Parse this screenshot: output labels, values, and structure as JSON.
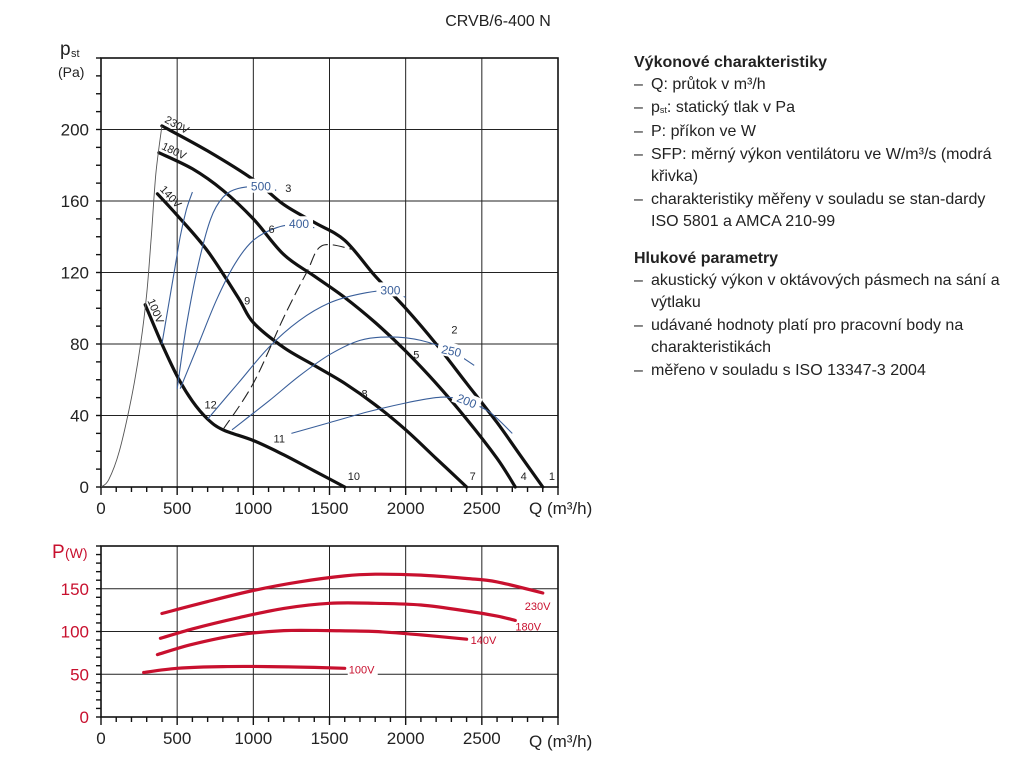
{
  "title": "CRVB/6-400 N",
  "notes": {
    "sections": [
      {
        "heading": "Výkonové charakteristiky",
        "items": [
          "Q: průtok v m³/h",
          "pst: statický tlak v Pa",
          "P: příkon ve W",
          "SFP: měrný výkon ventilátoru ve W/m³/s (modrá křivka)",
          "charakteristiky měřeny v souladu se stan-dardy ISO 5801 a AMCA 210-99"
        ]
      },
      {
        "heading": "Hlukové parametry",
        "items": [
          "akustický výkon v oktávových pásmech na sání a výtlaku",
          "udávané hodnoty platí pro pracovní body na charakteristikách",
          "měřeno v souladu s ISO 13347-3 2004"
        ]
      }
    ]
  },
  "colors": {
    "axis": "#111111",
    "fan_curve": "#111111",
    "sfp_curve": "#3a5f9a",
    "power": "#c8102e",
    "grid": "#222222"
  },
  "chart_data": [
    {
      "type": "line",
      "name": "pressure",
      "title": "CRVB/6-400 N",
      "xlabel": "Q (m³/h)",
      "ylabel_main": "p",
      "ylabel_sub": "st",
      "ylabel_unit": "(Pa)",
      "xlim": [
        0,
        3000
      ],
      "ylim": [
        0,
        240
      ],
      "xticks": [
        0,
        500,
        1000,
        1500,
        2000,
        2500
      ],
      "yticks": [
        0,
        40,
        80,
        120,
        160,
        200
      ],
      "grid": true,
      "series": [
        {
          "name": "230V",
          "kind": "fan",
          "label": "230V",
          "points": [
            [
              400,
              202
            ],
            [
              700,
              188
            ],
            [
              1000,
              172
            ],
            [
              1200,
              158
            ],
            [
              1400,
              148
            ],
            [
              1600,
              138
            ],
            [
              1800,
              118
            ],
            [
              2000,
              100
            ],
            [
              2200,
              80
            ],
            [
              2400,
              58
            ],
            [
              2600,
              36
            ],
            [
              2750,
              18
            ],
            [
              2900,
              0
            ]
          ]
        },
        {
          "name": "180V",
          "kind": "fan",
          "label": "180V",
          "points": [
            [
              380,
              187
            ],
            [
              600,
              178
            ],
            [
              800,
              166
            ],
            [
              1000,
              150
            ],
            [
              1200,
              130
            ],
            [
              1400,
              118
            ],
            [
              1600,
              106
            ],
            [
              1800,
              92
            ],
            [
              2000,
              76
            ],
            [
              2200,
              58
            ],
            [
              2400,
              38
            ],
            [
              2600,
              16
            ],
            [
              2720,
              0
            ]
          ]
        },
        {
          "name": "140V",
          "kind": "fan",
          "label": "140V",
          "points": [
            [
              370,
              164
            ],
            [
              500,
              152
            ],
            [
              700,
              132
            ],
            [
              900,
              106
            ],
            [
              1000,
              92
            ],
            [
              1200,
              78
            ],
            [
              1400,
              68
            ],
            [
              1600,
              58
            ],
            [
              1800,
              46
            ],
            [
              2000,
              32
            ],
            [
              2200,
              16
            ],
            [
              2400,
              0
            ]
          ]
        },
        {
          "name": "100V",
          "kind": "fan",
          "label": "100V",
          "points": [
            [
              290,
              102
            ],
            [
              400,
              80
            ],
            [
              500,
              62
            ],
            [
              600,
              48
            ],
            [
              700,
              38
            ],
            [
              800,
              32
            ],
            [
              1000,
              26
            ],
            [
              1200,
              18
            ],
            [
              1400,
              9
            ],
            [
              1600,
              0
            ]
          ]
        },
        {
          "name": "system",
          "kind": "thin",
          "points": [
            [
              0,
              0
            ],
            [
              50,
              4
            ],
            [
              120,
              20
            ],
            [
              200,
              50
            ],
            [
              260,
              80
            ],
            [
              300,
              108
            ],
            [
              330,
              140
            ],
            [
              360,
              175
            ],
            [
              400,
              202
            ]
          ]
        },
        {
          "name": "SFP 500",
          "kind": "sfp",
          "label": "500",
          "points": [
            [
              500,
              55
            ],
            [
              560,
              90
            ],
            [
              640,
              125
            ],
            [
              720,
              150
            ],
            [
              800,
              162
            ],
            [
              900,
              167
            ],
            [
              1050,
              168
            ],
            [
              1150,
              166
            ]
          ]
        },
        {
          "name": "SFP 400",
          "kind": "sfp",
          "label": "400",
          "points": [
            [
              520,
              55
            ],
            [
              640,
              80
            ],
            [
              760,
              105
            ],
            [
              880,
              125
            ],
            [
              1000,
              138
            ],
            [
              1150,
              145
            ],
            [
              1300,
              147
            ],
            [
              1400,
              145
            ]
          ]
        },
        {
          "name": "SFP 300",
          "kind": "sfp",
          "label": "300",
          "points": [
            [
              700,
              38
            ],
            [
              900,
              58
            ],
            [
              1100,
              78
            ],
            [
              1300,
              93
            ],
            [
              1500,
              103
            ],
            [
              1700,
              108
            ],
            [
              1900,
              110
            ],
            [
              2000,
              106
            ]
          ]
        },
        {
          "name": "SFP 250",
          "kind": "sfp",
          "label": "250",
          "points": [
            [
              860,
              32
            ],
            [
              1100,
              48
            ],
            [
              1300,
              62
            ],
            [
              1500,
              74
            ],
            [
              1700,
              82
            ],
            [
              1900,
              84
            ],
            [
              2100,
              82
            ],
            [
              2300,
              76
            ],
            [
              2450,
              68
            ]
          ]
        },
        {
          "name": "SFP 200",
          "kind": "sfp",
          "label": "200",
          "points": [
            [
              1250,
              30
            ],
            [
              1500,
              36
            ],
            [
              1750,
              42
            ],
            [
              2000,
              47
            ],
            [
              2200,
              50
            ],
            [
              2300,
              50
            ],
            [
              2400,
              48
            ],
            [
              2550,
              42
            ],
            [
              2700,
              30
            ]
          ]
        },
        {
          "name": "SFP 100V start",
          "kind": "sfp",
          "points": [
            [
              400,
              80
            ],
            [
              440,
              100
            ],
            [
              480,
              120
            ],
            [
              520,
              140
            ],
            [
              560,
              155
            ],
            [
              600,
              165
            ]
          ]
        },
        {
          "name": "dashed",
          "kind": "dashed",
          "points": [
            [
              800,
              32
            ],
            [
              1000,
              58
            ],
            [
              1200,
              95
            ],
            [
              1350,
              120
            ],
            [
              1450,
              135
            ],
            [
              1650,
              133
            ]
          ]
        }
      ],
      "point_labels": [
        {
          "text": "1",
          "x": 2960,
          "y": 4
        },
        {
          "text": "2",
          "x": 2320,
          "y": 86
        },
        {
          "text": "3",
          "x": 1230,
          "y": 165
        },
        {
          "text": "4",
          "x": 2775,
          "y": 4
        },
        {
          "text": "5",
          "x": 2070,
          "y": 72
        },
        {
          "text": "6",
          "x": 1120,
          "y": 142
        },
        {
          "text": "7",
          "x": 2440,
          "y": 4
        },
        {
          "text": "8",
          "x": 1730,
          "y": 50
        },
        {
          "text": "9",
          "x": 960,
          "y": 102
        },
        {
          "text": "10",
          "x": 1660,
          "y": 4
        },
        {
          "text": "11",
          "x": 1170,
          "y": 25
        },
        {
          "text": "12",
          "x": 720,
          "y": 44
        }
      ]
    },
    {
      "type": "line",
      "name": "power",
      "xlabel": "Q (m³/h)",
      "ylabel_main": "P",
      "ylabel_unit": "(W)",
      "xlim": [
        0,
        3000
      ],
      "ylim": [
        0,
        200
      ],
      "xticks": [
        0,
        500,
        1000,
        1500,
        2000,
        2500
      ],
      "yticks": [
        0,
        50,
        100,
        150
      ],
      "grid": true,
      "series": [
        {
          "name": "230V",
          "label": "230V",
          "points": [
            [
              400,
              121
            ],
            [
              700,
              135
            ],
            [
              1000,
              148
            ],
            [
              1300,
              158
            ],
            [
              1600,
              165
            ],
            [
              1800,
              167
            ],
            [
              2100,
              166
            ],
            [
              2400,
              162
            ],
            [
              2600,
              158
            ],
            [
              2900,
              145
            ]
          ]
        },
        {
          "name": "180V",
          "label": "180V",
          "points": [
            [
              390,
              92
            ],
            [
              600,
              103
            ],
            [
              900,
              116
            ],
            [
              1200,
              127
            ],
            [
              1500,
              133
            ],
            [
              1800,
              133
            ],
            [
              2100,
              131
            ],
            [
              2400,
              124
            ],
            [
              2600,
              118
            ],
            [
              2720,
              113
            ]
          ]
        },
        {
          "name": "140V",
          "label": "140V",
          "points": [
            [
              370,
              73
            ],
            [
              600,
              85
            ],
            [
              900,
              96
            ],
            [
              1200,
              101
            ],
            [
              1500,
              101
            ],
            [
              1800,
              100
            ],
            [
              2100,
              96
            ],
            [
              2400,
              91
            ]
          ]
        },
        {
          "name": "100V",
          "label": "100V",
          "points": [
            [
              280,
              52
            ],
            [
              500,
              57
            ],
            [
              800,
              59
            ],
            [
              1100,
              59
            ],
            [
              1400,
              58
            ],
            [
              1600,
              57
            ]
          ]
        }
      ]
    }
  ]
}
